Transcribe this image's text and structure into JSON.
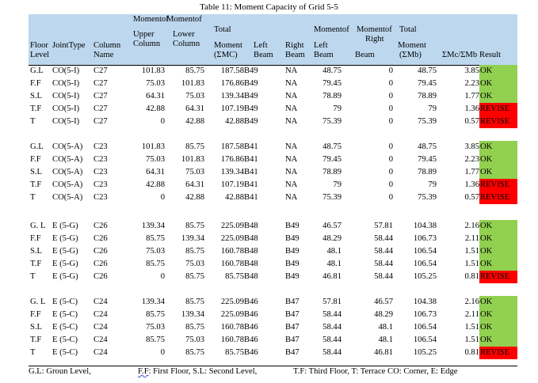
{
  "title": "Table 11: Moment Capacity of Grid 5-5",
  "header": {
    "moment_of_1": "Momentof",
    "moment_of_2": "Momentof",
    "moment_of_3": "Momentof",
    "moment_of_4": "Momentof",
    "total_1": "Total",
    "total_2": "Total",
    "upper": "Upper",
    "lower": "Lower",
    "moment_1": "Moment",
    "moment_2": "Moment",
    "column_1": "Column",
    "column_2": "Column",
    "column_3": "Column",
    "left_1": "Left",
    "left_2": "Left",
    "right_1": "Right",
    "right_2": "Right",
    "beam_1": "Beam",
    "beam_2": "Beam",
    "beam_3": "Beam",
    "beam_4": "Beam",
    "floor": "Floor",
    "level": "Level",
    "joint_type": "JointType",
    "name": "Name",
    "smc": "(ΣMC)",
    "smb": "(ΣMb)",
    "ratio": "ΣMc/ΣMb",
    "result": "Result"
  },
  "groups": [
    {
      "rows": [
        {
          "floor": "G.L",
          "joint": "CO(5-I)",
          "column": "C27",
          "upper": "101.83",
          "lower": "85.75",
          "total_c": "187.58",
          "left": "B49",
          "right": "NA",
          "left_m": "48.75",
          "right_m": "0",
          "total_b": "48.75",
          "ratio": "3.85",
          "result": "OK"
        },
        {
          "floor": "F.F",
          "joint": "CO(5-I)",
          "column": "C27",
          "upper": "75.03",
          "lower": "101.83",
          "total_c": "176.86",
          "left": "B49",
          "right": "NA",
          "left_m": "79.45",
          "right_m": "0",
          "total_b": "79.45",
          "ratio": "2.23",
          "result": "OK"
        },
        {
          "floor": "S.L",
          "joint": "CO(5-I)",
          "column": "C27",
          "upper": "64.31",
          "lower": "75.03",
          "total_c": "139.34",
          "left": "B49",
          "right": "NA",
          "left_m": "78.89",
          "right_m": "0",
          "total_b": "78.89",
          "ratio": "1.77",
          "result": "OK"
        },
        {
          "floor": "T.F",
          "joint": "CO(5-I)",
          "column": "C27",
          "upper": "42.88",
          "lower": "64.31",
          "total_c": "107.19",
          "left": "B49",
          "right": "NA",
          "left_m": "79",
          "right_m": "0",
          "total_b": "79",
          "ratio": "1.36",
          "result": "REVISE"
        },
        {
          "floor": "T",
          "joint": "CO(5-I)",
          "column": "C27",
          "upper": "0",
          "lower": "42.88",
          "total_c": "42.88",
          "left": "B49",
          "right": "NA",
          "left_m": "75.39",
          "right_m": "0",
          "total_b": "75.39",
          "ratio": "0.57",
          "result": "REVISE"
        }
      ]
    },
    {
      "rows": [
        {
          "floor": "G.L",
          "joint": "CO(5-A)",
          "column": "C23",
          "upper": "101.83",
          "lower": "85.75",
          "total_c": "187.58",
          "left": "B41",
          "right": "NA",
          "left_m": "48.75",
          "right_m": "0",
          "total_b": "48.75",
          "ratio": "3.85",
          "result": "OK"
        },
        {
          "floor": "F.F",
          "joint": "CO(5-A)",
          "column": "C23",
          "upper": "75.03",
          "lower": "101.83",
          "total_c": "176.86",
          "left": "B41",
          "right": "NA",
          "left_m": "79.45",
          "right_m": "0",
          "total_b": "79.45",
          "ratio": "2.23",
          "result": "OK"
        },
        {
          "floor": "S.L",
          "joint": "CO(5-A)",
          "column": "C23",
          "upper": "64.31",
          "lower": "75.03",
          "total_c": "139.34",
          "left": "B41",
          "right": "NA",
          "left_m": "78.89",
          "right_m": "0",
          "total_b": "78.89",
          "ratio": "1.77",
          "result": "OK"
        },
        {
          "floor": "T.F",
          "joint": "CO(5-A)",
          "column": "C23",
          "upper": "42.88",
          "lower": "64.31",
          "total_c": "107.19",
          "left": "B41",
          "right": "NA",
          "left_m": "79",
          "right_m": "0",
          "total_b": "79",
          "ratio": "1.36",
          "result": "REVISE"
        },
        {
          "floor": "T",
          "joint": "CO(5-A)",
          "column": "C23",
          "upper": "0",
          "lower": "42.88",
          "total_c": "42.88",
          "left": "B41",
          "right": "NA",
          "left_m": "75.39",
          "right_m": "0",
          "total_b": "75.39",
          "ratio": "0.57",
          "result": "REVISE"
        }
      ]
    },
    {
      "rows": [
        {
          "floor": "G. L",
          "joint": "E (5-G)",
          "column": "C26",
          "upper": "139.34",
          "lower": "85.75",
          "total_c": "225.09",
          "left": "B48",
          "right": "B49",
          "left_m": "46.57",
          "right_m": "57.81",
          "total_b": "104.38",
          "ratio": "2.16",
          "result": "OK"
        },
        {
          "floor": "F.F",
          "joint": "E (5-G)",
          "column": "C26",
          "upper": "85.75",
          "lower": "139.34",
          "total_c": "225.09",
          "left": "B48",
          "right": "B49",
          "left_m": "48.29",
          "right_m": "58.44",
          "total_b": "106.73",
          "ratio": "2.11",
          "result": "OK"
        },
        {
          "floor": "S.L",
          "joint": "E (5-G)",
          "column": "C26",
          "upper": "75.03",
          "lower": "85.75",
          "total_c": "160.78",
          "left": "B48",
          "right": "B49",
          "left_m": "48.1",
          "right_m": "58.44",
          "total_b": "106.54",
          "ratio": "1.51",
          "result": "OK"
        },
        {
          "floor": "T.F",
          "joint": "E (5-G)",
          "column": "C26",
          "upper": "85.75",
          "lower": "75.03",
          "total_c": "160.78",
          "left": "B48",
          "right": "B49",
          "left_m": "48.1",
          "right_m": "58.44",
          "total_b": "106.54",
          "ratio": "1.51",
          "result": "OK"
        },
        {
          "floor": "T",
          "joint": "E (5-G)",
          "column": "C26",
          "upper": "0",
          "lower": "85.75",
          "total_c": "85.75",
          "left": "B48",
          "right": "B49",
          "left_m": "46.81",
          "right_m": "58.44",
          "total_b": "105.25",
          "ratio": "0.81",
          "result": "REVISE"
        }
      ]
    },
    {
      "rows": [
        {
          "floor": "G. L",
          "joint": "E (5-C)",
          "column": "C24",
          "upper": "139.34",
          "lower": "85.75",
          "total_c": "225.09",
          "left": "B46",
          "right": "B47",
          "left_m": "57.81",
          "right_m": "46.57",
          "total_b": "104.38",
          "ratio": "2.16",
          "result": "OK"
        },
        {
          "floor": "F.F",
          "joint": "E (5-C)",
          "column": "C24",
          "upper": "85.75",
          "lower": "139.34",
          "total_c": "225.09",
          "left": "B46",
          "right": "B47",
          "left_m": "58.44",
          "right_m": "48.29",
          "total_b": "106.73",
          "ratio": "2.11",
          "result": "OK"
        },
        {
          "floor": "S.L",
          "joint": "E (5-C)",
          "column": "C24",
          "upper": "75.03",
          "lower": "85.75",
          "total_c": "160.78",
          "left": "B46",
          "right": "B47",
          "left_m": "58.44",
          "right_m": "48.1",
          "total_b": "106.54",
          "ratio": "1.51",
          "result": "OK"
        },
        {
          "floor": "T.F",
          "joint": "E (5-C)",
          "column": "C24",
          "upper": "85.75",
          "lower": "75.03",
          "total_c": "160.78",
          "left": "B46",
          "right": "B47",
          "left_m": "58.44",
          "right_m": "48.1",
          "total_b": "106.54",
          "ratio": "1.51",
          "result": "OK"
        },
        {
          "floor": "T",
          "joint": "E (5-C)",
          "column": "C24",
          "upper": "0",
          "lower": "85.75",
          "total_c": "85.75",
          "left": "B46",
          "right": "B47",
          "left_m": "58.44",
          "right_m": "46.81",
          "total_b": "105.25",
          "ratio": "0.81",
          "result": "REVISE"
        }
      ]
    }
  ],
  "footer": {
    "gl": "G.L: Groun Level,",
    "ff_abbr": "F.F",
    "ff_rest": ": First Floor,  S.L: Second Level,",
    "tf": "T.F: Third Floor,  T: Terrace  CO: Corner,  E: Edge"
  },
  "colors": {
    "header_bg": "#bdd7ee",
    "ok": "#92d050",
    "revise": "#ff0000"
  }
}
